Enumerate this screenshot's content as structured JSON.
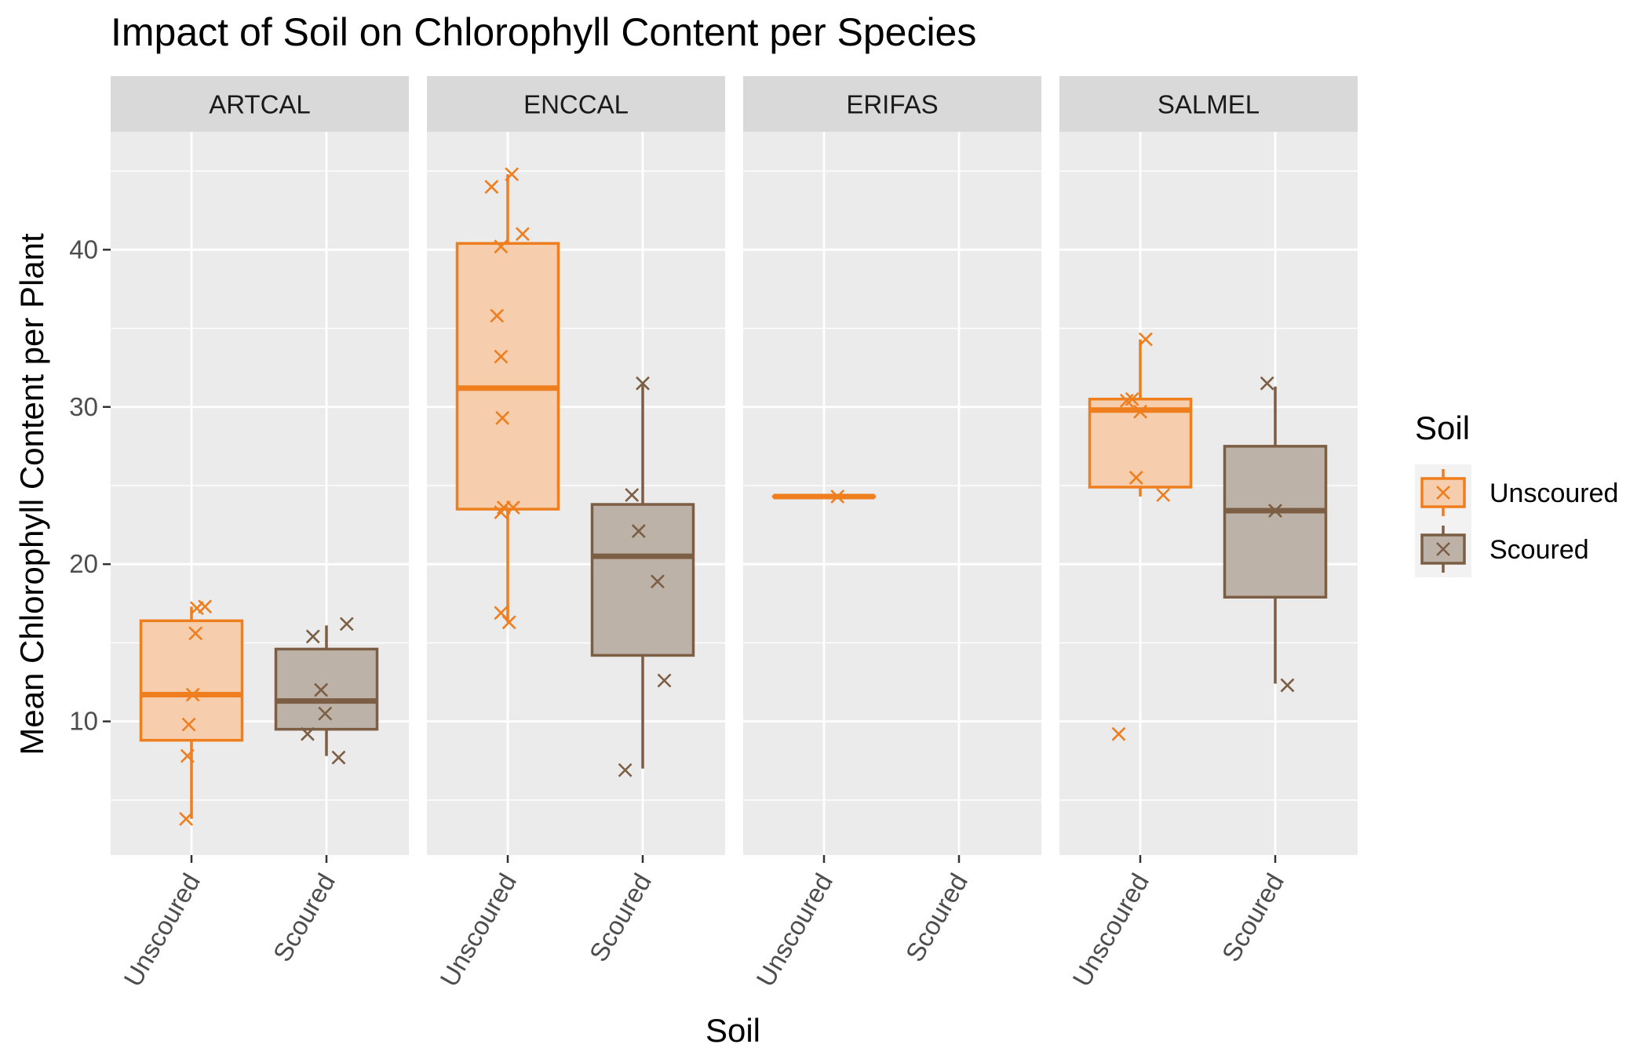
{
  "chart_data": {
    "type": "boxplot",
    "title": "Impact of Soil on Chlorophyll Content per Species",
    "xlabel": "Soil",
    "ylabel": "Mean Chlorophyll Content per Plant",
    "ylim": [
      1.5,
      47.5
    ],
    "yticks": [
      10,
      20,
      30,
      40
    ],
    "grid": true,
    "legend": {
      "title": "Soil",
      "position": "right",
      "entries": [
        {
          "label": "Unscoured",
          "color": "#EE7E1E"
        },
        {
          "label": "Scoured",
          "color": "#7B5E43"
        }
      ]
    },
    "categories": [
      "Unscoured",
      "Scoured"
    ],
    "colors": {
      "Unscoured": "#EE7E1E",
      "Scoured": "#7B5E43"
    },
    "fills": {
      "Unscoured": "#F6CEAE",
      "Scoured": "#BDB2A8"
    },
    "panel_background": "#EBEBEB",
    "strip_background": "#D9D9D9",
    "facets": [
      {
        "name": "ARTCAL",
        "groups": [
          {
            "soil": "Unscoured",
            "box": {
              "lower_whisker": 3.8,
              "q1": 8.8,
              "median": 11.7,
              "q3": 16.4,
              "upper_whisker": 17.3
            },
            "points": [
              [
                -0.04,
                3.8
              ],
              [
                -0.03,
                7.8
              ],
              [
                -0.02,
                9.8
              ],
              [
                0.01,
                11.7
              ],
              [
                0.03,
                15.6
              ],
              [
                0.04,
                17.2
              ],
              [
                0.1,
                17.3
              ]
            ]
          },
          {
            "soil": "Scoured",
            "box": {
              "lower_whisker": 7.8,
              "q1": 9.5,
              "median": 11.3,
              "q3": 14.6,
              "upper_whisker": 16.1
            },
            "points": [
              [
                -0.14,
                9.2
              ],
              [
                -0.1,
                15.4
              ],
              [
                -0.04,
                12.0
              ],
              [
                -0.01,
                10.5
              ],
              [
                0.09,
                7.7
              ],
              [
                0.15,
                16.2
              ]
            ]
          }
        ]
      },
      {
        "name": "ENCCAL",
        "groups": [
          {
            "soil": "Unscoured",
            "box": {
              "lower_whisker": 16.3,
              "q1": 23.5,
              "median": 31.2,
              "q3": 40.4,
              "upper_whisker": 44.8
            },
            "points": [
              [
                -0.12,
                44.0
              ],
              [
                0.03,
                44.8
              ],
              [
                0.11,
                41.0
              ],
              [
                -0.05,
                40.2
              ],
              [
                -0.08,
                35.8
              ],
              [
                -0.05,
                33.2
              ],
              [
                -0.04,
                29.3
              ],
              [
                -0.03,
                23.6
              ],
              [
                0.04,
                23.6
              ],
              [
                -0.05,
                23.3
              ],
              [
                -0.05,
                16.9
              ],
              [
                0.01,
                16.3
              ]
            ]
          },
          {
            "soil": "Scoured",
            "box": {
              "lower_whisker": 7.0,
              "q1": 14.2,
              "median": 20.5,
              "q3": 23.8,
              "upper_whisker": 31.4
            },
            "points": [
              [
                0.0,
                31.5
              ],
              [
                -0.08,
                24.4
              ],
              [
                -0.03,
                22.1
              ],
              [
                0.11,
                18.9
              ],
              [
                0.16,
                12.6
              ],
              [
                -0.13,
                6.9
              ]
            ]
          }
        ]
      },
      {
        "name": "ERIFAS",
        "groups": [
          {
            "soil": "Unscoured",
            "box": {
              "lower_whisker": 24.3,
              "q1": 24.3,
              "median": 24.3,
              "q3": 24.3,
              "upper_whisker": 24.3
            },
            "points": [
              [
                0.1,
                24.3
              ]
            ]
          }
        ]
      },
      {
        "name": "SALMEL",
        "groups": [
          {
            "soil": "Unscoured",
            "box": {
              "lower_whisker": 24.3,
              "q1": 24.9,
              "median": 29.8,
              "q3": 30.5,
              "upper_whisker": 34.3
            },
            "points": [
              [
                0.04,
                34.3
              ],
              [
                -0.1,
                30.4
              ],
              [
                -0.06,
                30.5
              ],
              [
                0.0,
                29.7
              ],
              [
                -0.03,
                25.5
              ],
              [
                0.17,
                24.4
              ],
              [
                -0.16,
                9.2
              ]
            ]
          },
          {
            "soil": "Scoured",
            "box": {
              "lower_whisker": 12.4,
              "q1": 17.9,
              "median": 23.4,
              "q3": 27.5,
              "upper_whisker": 31.3
            },
            "points": [
              [
                -0.06,
                31.5
              ],
              [
                0.0,
                23.4
              ],
              [
                0.09,
                12.3
              ]
            ]
          }
        ]
      }
    ]
  }
}
